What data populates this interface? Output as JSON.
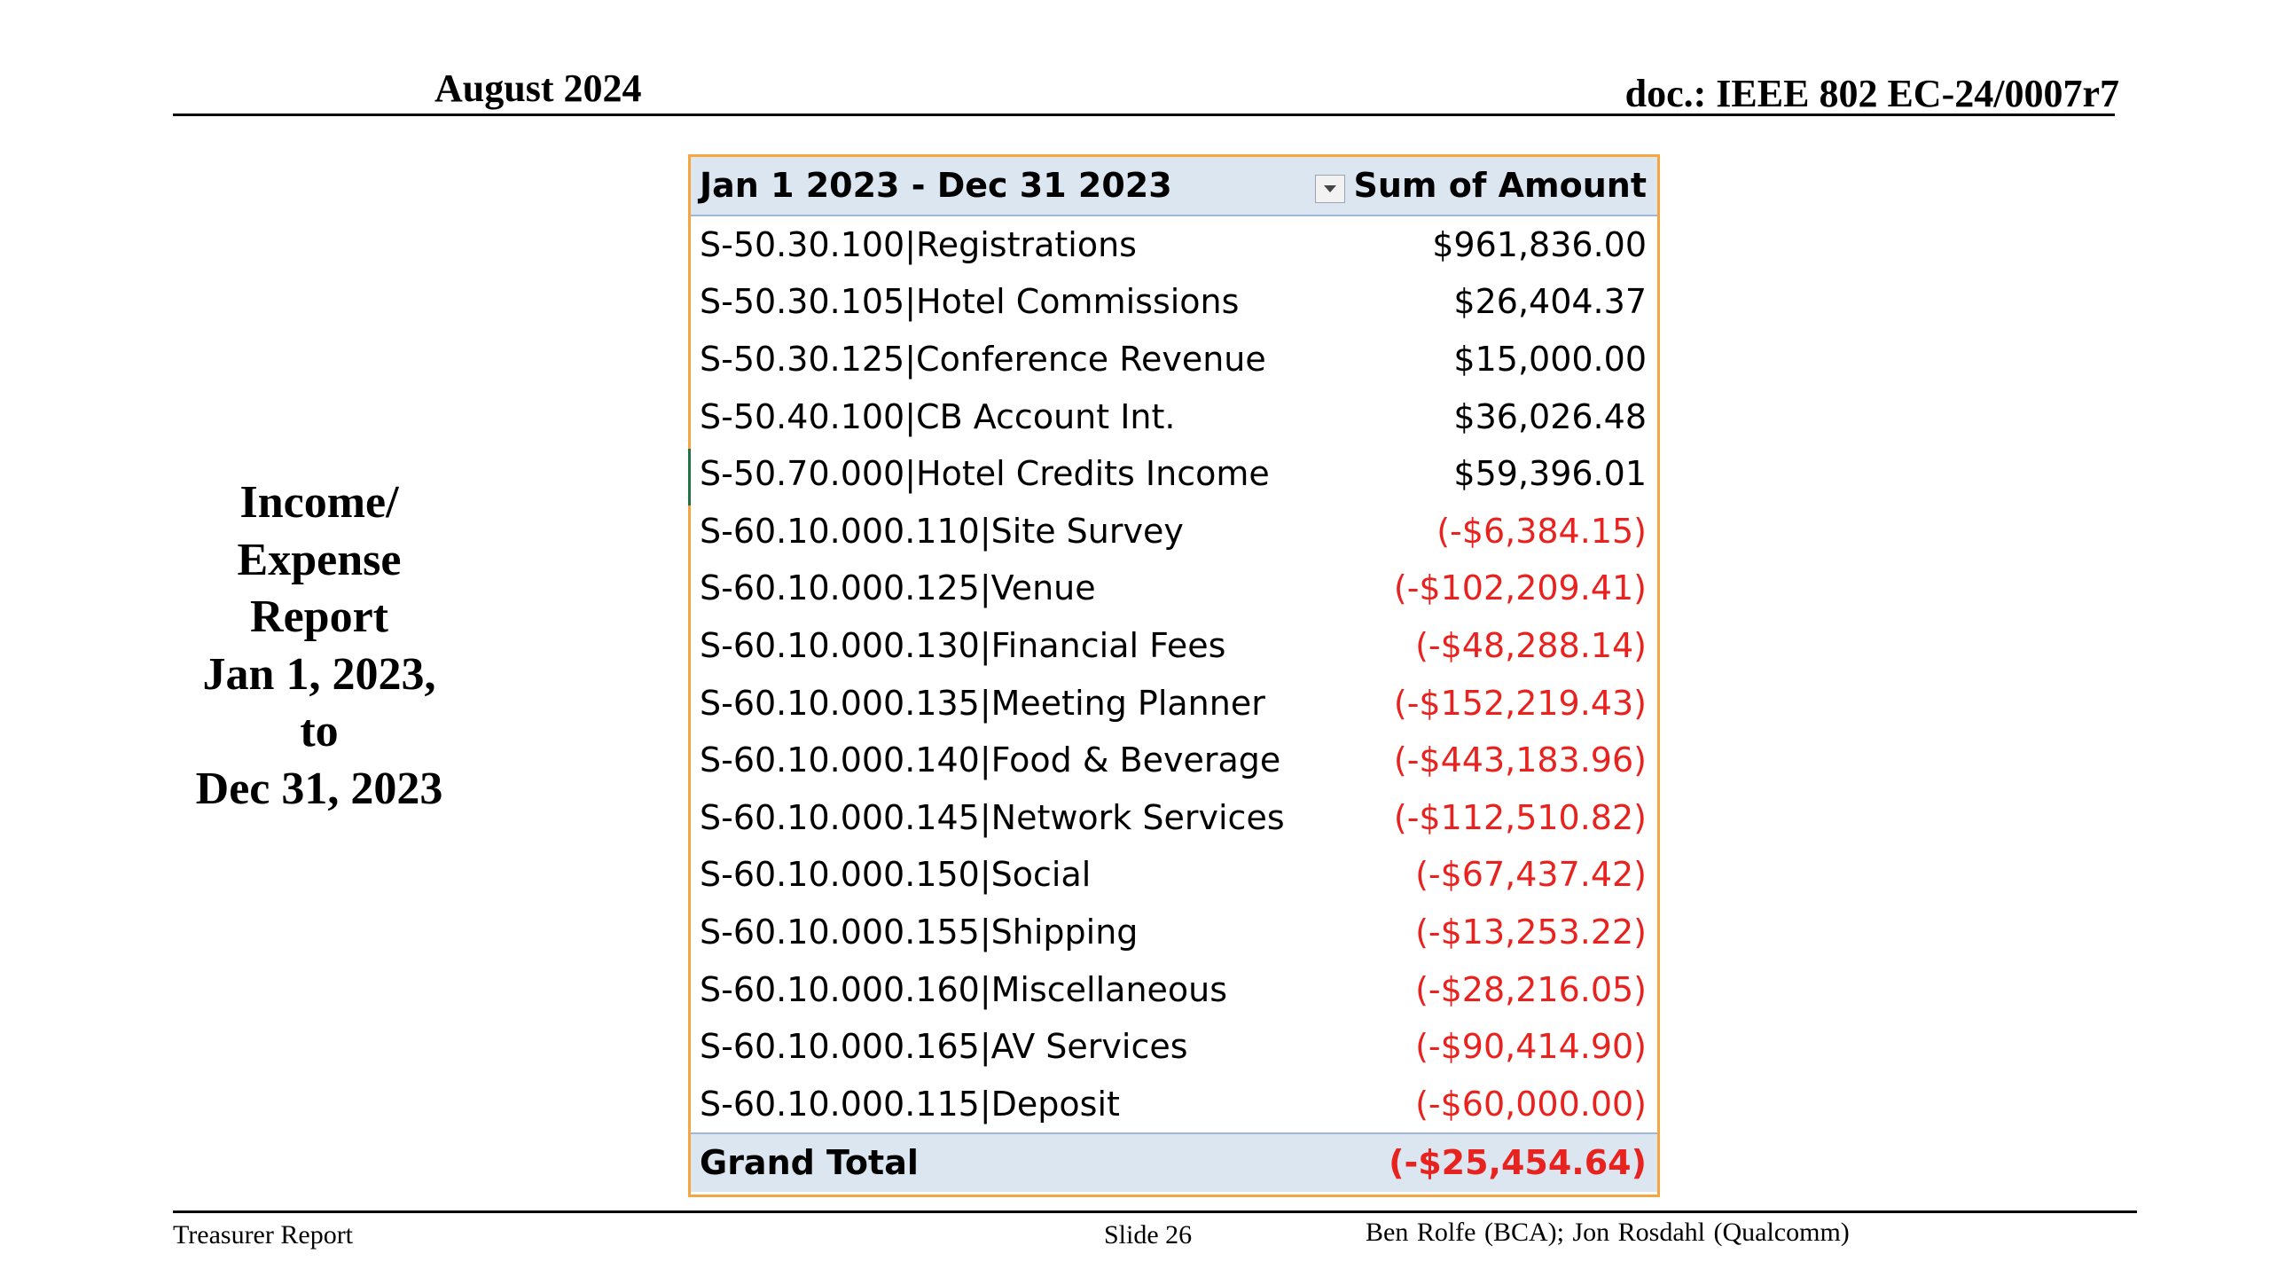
{
  "header": {
    "date": "August 2024",
    "doc_id": "doc.: IEEE 802 EC-24/0007r7"
  },
  "side_title": {
    "lines": [
      "Income/",
      "Expense",
      "Report",
      "Jan 1, 2023,",
      "to",
      "Dec 31, 2023"
    ]
  },
  "pivot": {
    "header_label": "Jan 1 2023 - Dec 31 2023",
    "header_value": "Sum of Amount",
    "rows": [
      {
        "label": "S-50.30.100|Registrations",
        "value": "$961,836.00"
      },
      {
        "label": "S-50.30.105|Hotel Commissions",
        "value": "$26,404.37"
      },
      {
        "label": "S-50.30.125|Conference Revenue",
        "value": "$15,000.00"
      },
      {
        "label": "S-50.40.100|CB Account Int.",
        "value": "$36,026.48"
      },
      {
        "label": "S-50.70.000|Hotel Credits Income",
        "value": "$59,396.01"
      },
      {
        "label": "S-60.10.000.110|Site Survey",
        "value": "(-$6,384.15)"
      },
      {
        "label": "S-60.10.000.125|Venue",
        "value": "(-$102,209.41)"
      },
      {
        "label": "S-60.10.000.130|Financial Fees",
        "value": "(-$48,288.14)"
      },
      {
        "label": "S-60.10.000.135|Meeting Planner",
        "value": "(-$152,219.43)"
      },
      {
        "label": "S-60.10.000.140|Food & Beverage",
        "value": "(-$443,183.96)"
      },
      {
        "label": "S-60.10.000.145|Network Services",
        "value": "(-$112,510.82)"
      },
      {
        "label": "S-60.10.000.150|Social",
        "value": "(-$67,437.42)"
      },
      {
        "label": "S-60.10.000.155|Shipping",
        "value": "(-$13,253.22)"
      },
      {
        "label": "S-60.10.000.160|Miscellaneous",
        "value": "(-$28,216.05)"
      },
      {
        "label": "S-60.10.000.165|AV Services",
        "value": "(-$90,414.90)"
      },
      {
        "label": "S-60.10.000.115|Deposit",
        "value": "(-$60,000.00)"
      }
    ],
    "total_label": "Grand Total",
    "total_value": "(-$25,454.64)",
    "negative_color": "#e8231f",
    "header_fill": "#dce6f1",
    "border_color": "#f5a542"
  },
  "footer": {
    "left": "Treasurer Report",
    "center": "Slide 26",
    "right": "Ben Rolfe (BCA);   Jon Rosdahl (Qualcomm)"
  }
}
